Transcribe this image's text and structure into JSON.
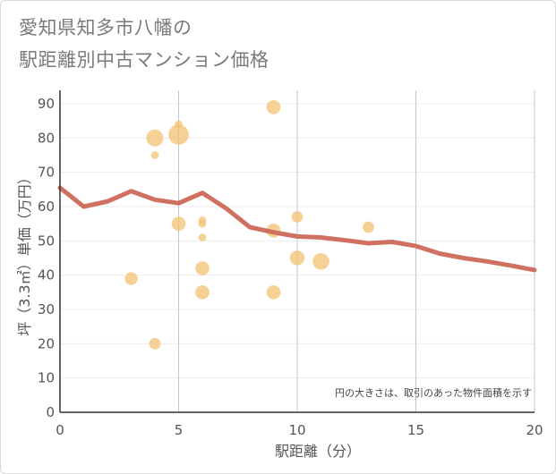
{
  "title_line1": "愛知県知多市八幡の",
  "title_line2": "駅距離別中古マンション価格",
  "chart_data": {
    "type": "scatter",
    "xlabel": "駅距離（分）",
    "ylabel": "坪（3.3㎡）単価（万円）",
    "xlim": [
      0,
      20
    ],
    "ylim": [
      0,
      90
    ],
    "x_ticks": [
      0,
      5,
      10,
      15,
      20
    ],
    "y_ticks": [
      0,
      10,
      20,
      30,
      40,
      50,
      60,
      70,
      80,
      90
    ],
    "grid": "vertical lines at major x ticks, light horizontal lines",
    "note": "円の大きさは、取引のあった物件面積を示す",
    "colors": {
      "bubble": "#f3c272",
      "line": "#d07060"
    },
    "points": [
      {
        "x": 3,
        "y": 39,
        "size": 2
      },
      {
        "x": 4,
        "y": 80,
        "size": 4
      },
      {
        "x": 4,
        "y": 75,
        "size": 0.5
      },
      {
        "x": 4,
        "y": 20,
        "size": 1.5
      },
      {
        "x": 5,
        "y": 84,
        "size": 0.5
      },
      {
        "x": 5,
        "y": 81,
        "size": 6
      },
      {
        "x": 5,
        "y": 55,
        "size": 2.5
      },
      {
        "x": 6,
        "y": 56,
        "size": 0.5
      },
      {
        "x": 6,
        "y": 55,
        "size": 0.5
      },
      {
        "x": 6,
        "y": 51,
        "size": 0.5
      },
      {
        "x": 6,
        "y": 42,
        "size": 2.5
      },
      {
        "x": 6,
        "y": 35,
        "size": 2.5
      },
      {
        "x": 9,
        "y": 89,
        "size": 2.5
      },
      {
        "x": 9,
        "y": 53,
        "size": 2.5
      },
      {
        "x": 9,
        "y": 35,
        "size": 2.5
      },
      {
        "x": 10,
        "y": 57,
        "size": 1.5
      },
      {
        "x": 10,
        "y": 45,
        "size": 2.8
      },
      {
        "x": 11,
        "y": 44,
        "size": 3.8
      },
      {
        "x": 13,
        "y": 54,
        "size": 1.5
      }
    ],
    "trend_line": {
      "x": [
        0,
        1,
        2,
        3,
        4,
        5,
        6,
        7,
        8,
        9,
        10,
        11,
        12,
        13,
        14,
        15,
        16,
        17,
        18,
        19,
        20
      ],
      "y": [
        65.5,
        60,
        61.5,
        64.5,
        62,
        61,
        64,
        59.5,
        54,
        52.5,
        51.3,
        51,
        50.2,
        49.3,
        49.7,
        48.5,
        46.3,
        45,
        44,
        42.8,
        41.5
      ]
    }
  }
}
